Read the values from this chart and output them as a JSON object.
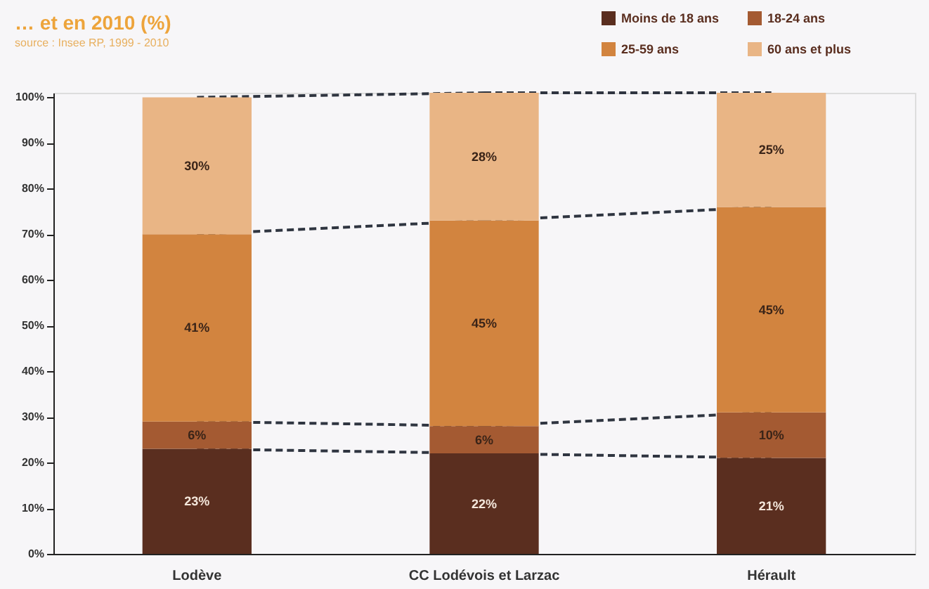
{
  "chart_data": {
    "type": "bar",
    "stacked": true,
    "title": "… et en 2010 (%)",
    "annotations": [
      "source : Insee RP, 1999 - 2010"
    ],
    "categories": [
      "Lodève",
      "CC Lodévois et Larzac",
      "Hérault"
    ],
    "series": [
      {
        "name": "Moins de 18 ans",
        "color": "#5a2e1f",
        "values": [
          23,
          22,
          21
        ],
        "value_labels": [
          "23%",
          "22%",
          "21%"
        ]
      },
      {
        "name": "18-24 ans",
        "color": "#a45a32",
        "values": [
          6,
          6,
          10
        ],
        "value_labels": [
          "6%",
          "6%",
          "10%"
        ]
      },
      {
        "name": "25-59 ans",
        "color": "#d2843f",
        "values": [
          41,
          45,
          45
        ],
        "value_labels": [
          "41%",
          "45%",
          "45%"
        ]
      },
      {
        "name": "60 ans et plus",
        "color": "#e9b585",
        "values": [
          30,
          28,
          25
        ],
        "value_labels": [
          "30%",
          "28%",
          "25%"
        ]
      }
    ],
    "ylim": [
      0,
      101
    ],
    "yticks": [
      {
        "value": 0,
        "label": "0%"
      },
      {
        "value": 10,
        "label": "10%"
      },
      {
        "value": 20,
        "label": "20%"
      },
      {
        "value": 30,
        "label": "30%"
      },
      {
        "value": 40,
        "label": "40%"
      },
      {
        "value": 50,
        "label": "50%"
      },
      {
        "value": 60,
        "label": "60%"
      },
      {
        "value": 70,
        "label": "70%"
      },
      {
        "value": 80,
        "label": "80%"
      },
      {
        "value": 90,
        "label": "90%"
      },
      {
        "value": 100,
        "label": "100%"
      }
    ],
    "grid": false,
    "legend": "top right"
  }
}
